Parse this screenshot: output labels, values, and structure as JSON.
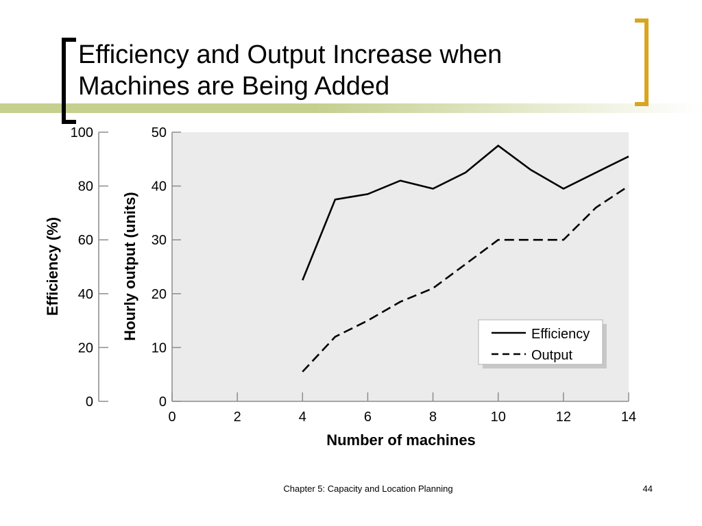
{
  "slide": {
    "title_line1": "Efficiency and Output Increase when",
    "title_line2": "Machines are Being Added",
    "footer_text": "Chapter 5: Capacity and Location Planning",
    "page_number": "44",
    "accent_color": "#c5cf8e",
    "bracket_left_color": "#000000",
    "bracket_right_color": "#d9a520"
  },
  "chart_data": {
    "type": "line",
    "title": "",
    "xlabel": "Number of machines",
    "ylabel_left": "Efficiency (%)",
    "ylabel_right": "Hourly output (units)",
    "xlim": [
      0,
      14
    ],
    "ylim_left": [
      0,
      100
    ],
    "ylim_right": [
      0,
      50
    ],
    "xticks": [
      "0",
      "2",
      "4",
      "6",
      "8",
      "10",
      "12",
      "14"
    ],
    "yticks_left": [
      "0",
      "20",
      "40",
      "60",
      "80",
      "100"
    ],
    "yticks_right": [
      "0",
      "10",
      "20",
      "30",
      "40",
      "50"
    ],
    "grid": false,
    "plot_background": "#ebebeb",
    "legend_position": "bottom-right",
    "series": [
      {
        "name": "Efficiency",
        "axis": "left",
        "style": "solid",
        "x": [
          4,
          5,
          6,
          7,
          8,
          9,
          10,
          11,
          12,
          13,
          14
        ],
        "y": [
          45,
          75,
          77,
          82,
          79,
          85,
          95,
          86,
          79,
          85,
          91
        ]
      },
      {
        "name": "Output",
        "axis": "right",
        "style": "dashed",
        "x": [
          4,
          5,
          6,
          7,
          8,
          9,
          10,
          11,
          12,
          13,
          14
        ],
        "y": [
          5.5,
          12,
          15,
          18.5,
          21,
          25.5,
          30,
          30,
          30,
          36,
          40
        ]
      }
    ]
  }
}
